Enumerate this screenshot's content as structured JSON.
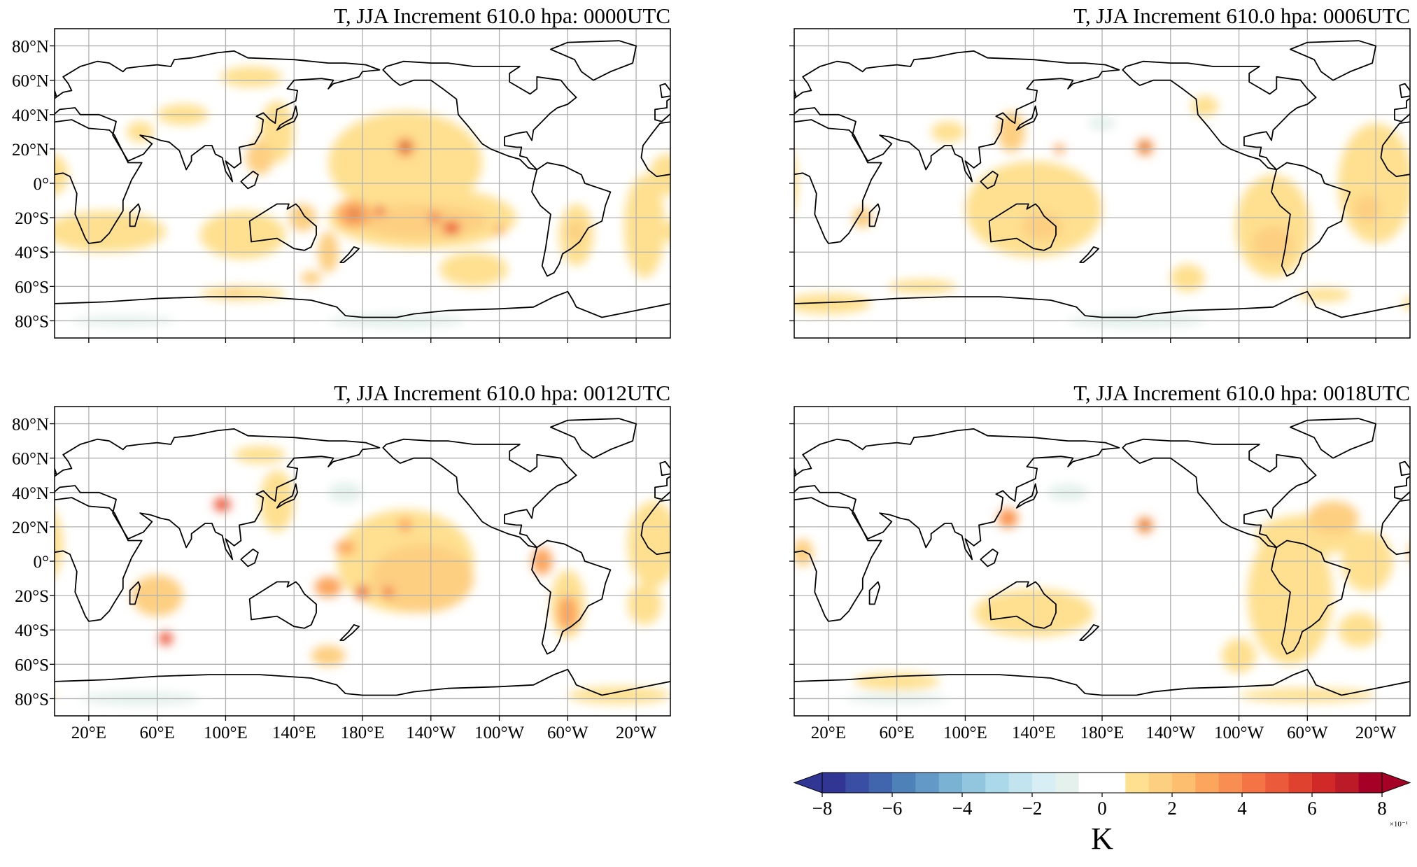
{
  "chart_data": {
    "type": "heatmap",
    "variable": "T",
    "panels": [
      {
        "title": "T, JJA Increment 610.0 hpa:  0000UTC"
      },
      {
        "title": "T, JJA Increment 610.0 hpa:  0006UTC"
      },
      {
        "title": "T, JJA Increment 610.0 hpa:  0012UTC"
      },
      {
        "title": "T, JJA Increment 610.0 hpa:  0018UTC"
      }
    ],
    "lat_ticks": [
      "80°N",
      "60°N",
      "40°N",
      "20°N",
      "0°",
      "20°S",
      "40°S",
      "60°S",
      "80°S"
    ],
    "lat_values": [
      80,
      60,
      40,
      20,
      0,
      -20,
      -40,
      -60,
      -80
    ],
    "lon_ticks": [
      "20°E",
      "60°E",
      "100°E",
      "140°E",
      "180°E",
      "140°W",
      "100°W",
      "60°W",
      "20°W"
    ],
    "lon_values": [
      20,
      60,
      100,
      140,
      180,
      220,
      260,
      300,
      340
    ],
    "xlim": [
      0,
      360
    ],
    "ylim": [
      -90,
      90
    ],
    "grid": true,
    "colorbar": {
      "label": "K",
      "scale_label": "×10⁻¹",
      "ticks": [
        "−8",
        "−6",
        "−4",
        "−2",
        "0",
        "2",
        "4",
        "6",
        "8"
      ],
      "tick_values": [
        -8,
        -6,
        -4,
        -2,
        0,
        2,
        4,
        6,
        8
      ],
      "range": [
        -8,
        8
      ],
      "extend": "both",
      "colors": [
        "#313695",
        "#3a4fa3",
        "#4166ad",
        "#4f81b9",
        "#6399c6",
        "#7ab2d4",
        "#92c5de",
        "#abd9e9",
        "#c2e4ef",
        "#d7eef5",
        "#e4f1ec",
        "#ffffff",
        "#ffffff",
        "#fee090",
        "#fdcf81",
        "#fdbe70",
        "#fca55d",
        "#f88e52",
        "#f47446",
        "#eb5a3a",
        "#df432f",
        "#d02927",
        "#bb1a27",
        "#a50026"
      ]
    }
  }
}
